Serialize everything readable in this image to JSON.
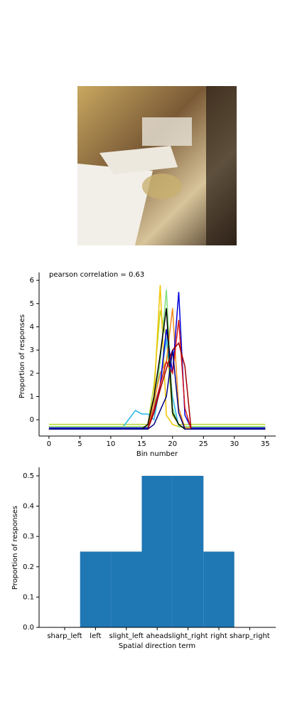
{
  "chart_data": [
    {
      "type": "line",
      "title": "pearson correlation = 0.63",
      "x_label": "Bin number",
      "y_label": "Proportion of responses",
      "x": [
        0,
        1,
        2,
        3,
        4,
        5,
        6,
        7,
        8,
        9,
        10,
        11,
        12,
        13,
        14,
        15,
        16,
        17,
        18,
        19,
        20,
        21,
        22,
        23,
        24,
        25,
        26,
        27,
        28,
        29,
        30,
        31,
        32,
        33,
        34,
        35
      ],
      "xlim": [
        -1.6,
        36.7
      ],
      "xticks": [
        0,
        5,
        10,
        15,
        20,
        25,
        30,
        35
      ],
      "ylim": [
        -0.7,
        6.34
      ],
      "yticks": [
        0,
        1,
        2,
        3,
        4,
        5,
        6
      ],
      "series": [
        {
          "color": "#b8d82c",
          "values": [
            -0.2,
            -0.2,
            -0.2,
            -0.2,
            -0.2,
            -0.2,
            -0.2,
            -0.2,
            -0.2,
            -0.2,
            -0.2,
            -0.2,
            -0.2,
            -0.2,
            -0.2,
            -0.2,
            -0.2,
            1.5,
            4.7,
            3.5,
            0.2,
            -0.2,
            -0.2,
            -0.2,
            -0.2,
            -0.2,
            -0.2,
            -0.2,
            -0.2,
            -0.2,
            -0.2,
            -0.2,
            -0.2,
            -0.2,
            -0.2,
            -0.2
          ]
        },
        {
          "color": "#29b6e8",
          "values": [
            -0.3,
            -0.3,
            -0.3,
            -0.3,
            -0.3,
            -0.3,
            -0.3,
            -0.3,
            -0.3,
            -0.3,
            -0.3,
            -0.3,
            -0.3,
            0.05,
            0.4,
            0.25,
            0.25,
            0,
            1.5,
            3.5,
            1.0,
            -0.3,
            -0.3,
            -0.3,
            -0.3,
            -0.3,
            -0.3,
            -0.3,
            -0.3,
            -0.3,
            -0.3,
            -0.3,
            -0.3,
            -0.3,
            -0.3,
            -0.3
          ]
        },
        {
          "color": "#f2c500",
          "values": [
            -0.3,
            -0.3,
            -0.3,
            -0.3,
            -0.3,
            -0.3,
            -0.3,
            -0.3,
            -0.3,
            -0.3,
            -0.3,
            -0.3,
            -0.3,
            -0.3,
            -0.3,
            -0.3,
            -0.3,
            1.0,
            5.8,
            0.2,
            -0.2,
            -0.3,
            -0.3,
            -0.3,
            -0.3,
            -0.3,
            -0.3,
            -0.3,
            -0.3,
            -0.3,
            -0.3,
            -0.3,
            -0.3,
            -0.3,
            -0.3,
            -0.3
          ]
        },
        {
          "color": "#7fe07a",
          "values": [
            -0.3,
            -0.3,
            -0.3,
            -0.3,
            -0.3,
            -0.3,
            -0.3,
            -0.3,
            -0.3,
            -0.3,
            -0.3,
            -0.3,
            -0.3,
            -0.3,
            -0.3,
            -0.3,
            -0.3,
            0.5,
            2.5,
            5.6,
            0.5,
            -0.3,
            -0.3,
            -0.3,
            -0.3,
            -0.3,
            -0.3,
            -0.3,
            -0.3,
            -0.3,
            -0.3,
            -0.3,
            -0.3,
            -0.3,
            -0.3,
            -0.3
          ]
        },
        {
          "color": "#f08a1c",
          "values": [
            -0.35,
            -0.35,
            -0.35,
            -0.35,
            -0.35,
            -0.35,
            -0.35,
            -0.35,
            -0.35,
            -0.35,
            -0.35,
            -0.35,
            -0.35,
            -0.35,
            -0.35,
            -0.35,
            -0.35,
            0.8,
            2.0,
            2.5,
            4.8,
            0.5,
            -0.35,
            -0.35,
            -0.35,
            -0.35,
            -0.35,
            -0.35,
            -0.35,
            -0.35,
            -0.35,
            -0.35,
            -0.35,
            -0.35,
            -0.35,
            -0.35
          ]
        },
        {
          "color": "#0000d8",
          "values": [
            -0.35,
            -0.35,
            -0.35,
            -0.35,
            -0.35,
            -0.35,
            -0.35,
            -0.35,
            -0.35,
            -0.35,
            -0.35,
            -0.35,
            -0.35,
            -0.35,
            -0.35,
            -0.35,
            -0.35,
            0.3,
            1.5,
            3.9,
            2.0,
            5.5,
            0.2,
            -0.35,
            -0.35,
            -0.35,
            -0.35,
            -0.35,
            -0.35,
            -0.35,
            -0.35,
            -0.35,
            -0.35,
            -0.35,
            -0.35,
            -0.35
          ]
        },
        {
          "color": "#000000",
          "values": [
            -0.4,
            -0.4,
            -0.4,
            -0.4,
            -0.4,
            -0.4,
            -0.4,
            -0.4,
            -0.4,
            -0.4,
            -0.4,
            -0.4,
            -0.4,
            -0.4,
            -0.4,
            -0.4,
            -0.2,
            1.0,
            2.8,
            4.8,
            0.3,
            -0.2,
            -0.4,
            -0.4,
            -0.4,
            -0.4,
            -0.4,
            -0.4,
            -0.4,
            -0.4,
            -0.4,
            -0.4,
            -0.4,
            -0.4,
            -0.4,
            -0.4
          ]
        },
        {
          "color": "#d81818",
          "values": [
            -0.4,
            -0.4,
            -0.4,
            -0.4,
            -0.4,
            -0.4,
            -0.4,
            -0.4,
            -0.4,
            -0.4,
            -0.4,
            -0.4,
            -0.4,
            -0.4,
            -0.4,
            -0.4,
            -0.4,
            0.5,
            1.5,
            2.5,
            2.0,
            4.3,
            0.5,
            -0.4,
            -0.4,
            -0.4,
            -0.4,
            -0.4,
            -0.4,
            -0.4,
            -0.4,
            -0.4,
            -0.4,
            -0.4,
            -0.4,
            -0.4
          ]
        },
        {
          "color": "#a00000",
          "values": [
            -0.4,
            -0.4,
            -0.4,
            -0.4,
            -0.4,
            -0.4,
            -0.4,
            -0.4,
            -0.4,
            -0.4,
            -0.4,
            -0.4,
            -0.4,
            -0.4,
            -0.4,
            -0.4,
            -0.4,
            0.3,
            1.3,
            2.2,
            3.0,
            3.3,
            2.3,
            -0.4,
            -0.4,
            -0.4,
            -0.4,
            -0.4,
            -0.4,
            -0.4,
            -0.4,
            -0.4,
            -0.4,
            -0.4,
            -0.4,
            -0.4
          ]
        },
        {
          "color": "#000080",
          "values": [
            -0.4,
            -0.4,
            -0.4,
            -0.4,
            -0.4,
            -0.4,
            -0.4,
            -0.4,
            -0.4,
            -0.4,
            -0.4,
            -0.4,
            -0.4,
            -0.4,
            -0.4,
            -0.4,
            -0.4,
            -0.2,
            0.4,
            1.0,
            3.0,
            0.3,
            -0.4,
            -0.4,
            -0.4,
            -0.4,
            -0.4,
            -0.4,
            -0.4,
            -0.4,
            -0.4,
            -0.4,
            -0.4,
            -0.4,
            -0.4,
            -0.4
          ]
        }
      ]
    },
    {
      "type": "bar",
      "x_label": "Spatial direction term",
      "y_label": "Proportion of responses",
      "categories": [
        "sharp_left",
        "left",
        "slight_left",
        "ahead",
        "slight_right",
        "right",
        "sharp_right"
      ],
      "values": [
        0,
        0.25,
        0.25,
        0.5,
        0.5,
        0.25,
        0
      ],
      "color": "#1f77b4",
      "ylim": [
        0,
        0.528
      ],
      "yticks": [
        {
          "value": 0,
          "label": "0.0"
        },
        {
          "value": 0.1,
          "label": "0.1"
        },
        {
          "value": 0.2,
          "label": "0.2"
        },
        {
          "value": 0.3,
          "label": "0.3"
        },
        {
          "value": 0.4,
          "label": "0.4"
        },
        {
          "value": 0.5,
          "label": "0.5"
        }
      ]
    }
  ]
}
